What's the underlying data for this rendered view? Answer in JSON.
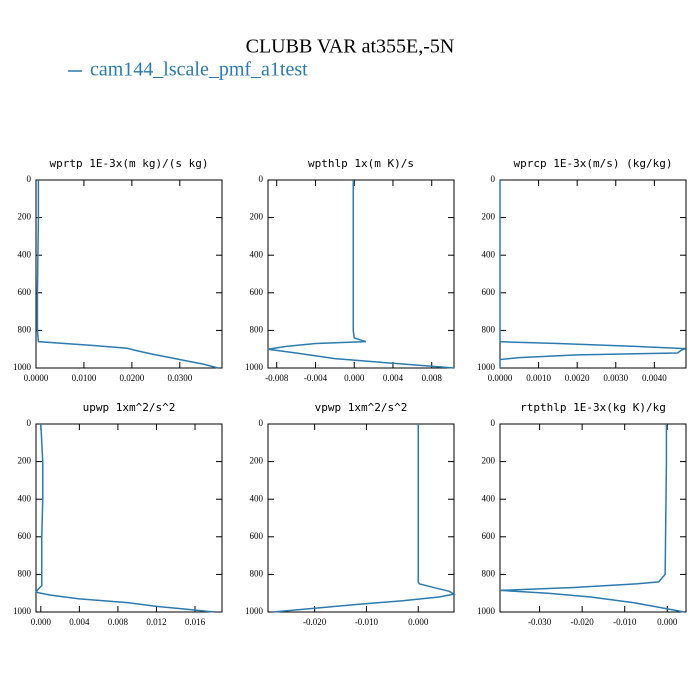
{
  "title": "CLUBB VAR at355E,-5N",
  "legend": {
    "name": "cam144_lscale_pmf_a1test",
    "color": "#2b7bb0"
  },
  "chart_data": [
    {
      "type": "line",
      "title": "wprtp  1E-3x(m kg)/(s kg)",
      "y": [
        0,
        200,
        400,
        600,
        800,
        860,
        870,
        880,
        895,
        905,
        925,
        945,
        960,
        980,
        1000
      ],
      "series": [
        {
          "color": "#2b7bb0",
          "values": [
            0.0005,
            0.0005,
            0.0004,
            0.0003,
            0.0003,
            0.0005,
            0.006,
            0.012,
            0.019,
            0.0205,
            0.024,
            0.028,
            0.031,
            0.035,
            0.038
          ]
        }
      ],
      "xlim": [
        0,
        0.0388
      ],
      "ylim": [
        1000,
        0
      ],
      "xticks": [
        {
          "value": 0,
          "label": "0.0000"
        },
        {
          "value": 0.01,
          "label": "0.0100"
        },
        {
          "value": 0.02,
          "label": "0.0200"
        },
        {
          "value": 0.03,
          "label": "0.0300"
        }
      ],
      "yticks": [
        0,
        200,
        400,
        600,
        800,
        1000
      ]
    },
    {
      "type": "line",
      "title": "wpthlp  1x(m K)/s",
      "y": [
        0,
        200,
        400,
        600,
        800,
        840,
        860,
        870,
        885,
        900,
        920,
        950,
        975,
        1000
      ],
      "series": [
        {
          "color": "#2b7bb0",
          "values": [
            -0.0001,
            -0.0001,
            -0.0001,
            -0.0001,
            -0.0001,
            0,
            0.0012,
            -0.004,
            -0.007,
            -0.0089,
            -0.006,
            -0.002,
            0.004,
            0.0103
          ]
        }
      ],
      "xlim": [
        -0.0089,
        0.0103
      ],
      "ylim": [
        1000,
        0
      ],
      "xticks": [
        {
          "value": -0.008,
          "label": "-0.008"
        },
        {
          "value": -0.004,
          "label": "-0.004"
        },
        {
          "value": 0,
          "label": "0.000"
        },
        {
          "value": 0.004,
          "label": "0.004"
        },
        {
          "value": 0.008,
          "label": "0.008"
        }
      ],
      "yticks": [
        0,
        200,
        400,
        600,
        800,
        1000
      ]
    },
    {
      "type": "line",
      "title": "wprcp  1E-3x(m/s) (kg/kg)",
      "y": [
        0,
        200,
        400,
        600,
        800,
        860,
        870,
        885,
        897,
        905,
        920,
        930,
        945,
        955,
        1000
      ],
      "series": [
        {
          "color": "#2b7bb0",
          "values": [
            0,
            0,
            0,
            0,
            0,
            0,
            0.0015,
            0.0035,
            0.0048,
            0.0047,
            0.0046,
            0.002,
            0.0005,
            0,
            0
          ]
        }
      ],
      "xlim": [
        0,
        0.00482
      ],
      "ylim": [
        1000,
        0
      ],
      "xticks": [
        {
          "value": 0,
          "label": "0.0000"
        },
        {
          "value": 0.001,
          "label": "0.0010"
        },
        {
          "value": 0.002,
          "label": "0.0020"
        },
        {
          "value": 0.003,
          "label": "0.0030"
        },
        {
          "value": 0.004,
          "label": "0.0040"
        }
      ],
      "yticks": [
        0,
        200,
        400,
        600,
        800,
        1000
      ]
    },
    {
      "type": "line",
      "title": "upwp  1xm^2/s^2",
      "y": [
        0,
        200,
        400,
        600,
        800,
        860,
        880,
        895,
        910,
        930,
        950,
        970,
        985,
        1000
      ],
      "series": [
        {
          "color": "#2b7bb0",
          "values": [
            0,
            0.0002,
            0.0002,
            0.0001,
            0.0001,
            0.0001,
            -0.0003,
            -0.0005,
            0.001,
            0.004,
            0.009,
            0.012,
            0.015,
            0.018
          ]
        }
      ],
      "xlim": [
        -0.0005,
        0.0188
      ],
      "ylim": [
        1000,
        0
      ],
      "xticks": [
        {
          "value": 0,
          "label": "0.000"
        },
        {
          "value": 0.004,
          "label": "0.004"
        },
        {
          "value": 0.008,
          "label": "0.008"
        },
        {
          "value": 0.012,
          "label": "0.012"
        },
        {
          "value": 0.016,
          "label": "0.016"
        }
      ],
      "yticks": [
        0,
        200,
        400,
        600,
        800,
        1000
      ]
    },
    {
      "type": "line",
      "title": "vpwp  1xm^2/s^2",
      "y": [
        0,
        200,
        400,
        600,
        800,
        840,
        850,
        870,
        890,
        905,
        920,
        940,
        960,
        980,
        1000
      ],
      "series": [
        {
          "color": "#2b7bb0",
          "values": [
            0,
            0,
            0,
            0,
            0,
            0,
            0.0002,
            0.003,
            0.006,
            0.0069,
            0.004,
            -0.003,
            -0.012,
            -0.02,
            -0.028
          ]
        }
      ],
      "xlim": [
        -0.029,
        0.0069
      ],
      "ylim": [
        1000,
        0
      ],
      "xticks": [
        {
          "value": -0.02,
          "label": "-0.020"
        },
        {
          "value": -0.01,
          "label": "-0.010"
        },
        {
          "value": 0,
          "label": "0.000"
        }
      ],
      "yticks": [
        0,
        200,
        400,
        600,
        800,
        1000
      ]
    },
    {
      "type": "line",
      "title": "rtpthlp  1E-3x(kg K)/kg",
      "y": [
        0,
        200,
        400,
        600,
        800,
        840,
        850,
        870,
        885,
        900,
        920,
        950,
        975,
        1000
      ],
      "series": [
        {
          "color": "#2b7bb0",
          "values": [
            -0.0002,
            -0.0002,
            -0.0003,
            -0.0004,
            -0.0005,
            -0.002,
            -0.007,
            -0.022,
            -0.0393,
            -0.028,
            -0.018,
            -0.008,
            -0.002,
            0.004
          ]
        }
      ],
      "xlim": [
        -0.0393,
        0.0044
      ],
      "ylim": [
        1000,
        0
      ],
      "xticks": [
        {
          "value": -0.03,
          "label": "-0.030"
        },
        {
          "value": -0.02,
          "label": "-0.020"
        },
        {
          "value": -0.01,
          "label": "-0.010"
        },
        {
          "value": 0,
          "label": "0.000"
        }
      ],
      "yticks": [
        0,
        200,
        400,
        600,
        800,
        1000
      ]
    }
  ]
}
